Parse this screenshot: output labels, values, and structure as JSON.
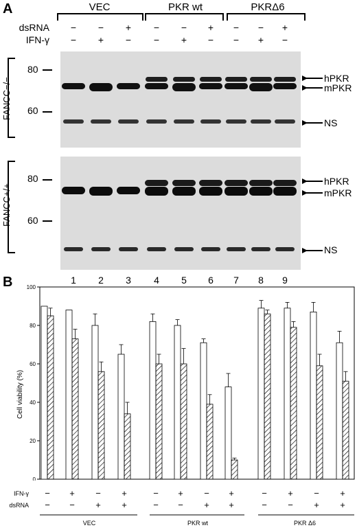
{
  "panel_a": {
    "letter": "A",
    "groups": [
      "VEC",
      "PKR wt",
      "PKRΔ6"
    ],
    "dsrna_label": "dsRNA",
    "ifn_label": "IFN-γ",
    "dsrna_signs": [
      "−",
      "−",
      "+",
      "−",
      "−",
      "+",
      "−",
      "−",
      "+"
    ],
    "ifn_signs": [
      "−",
      "+",
      "−",
      "−",
      "+",
      "−",
      "−",
      "+",
      "−"
    ],
    "blot_top_label": "FANCC−/−",
    "blot_bottom_label": "FANCC+/+",
    "mw_80": "80",
    "mw_60": "60",
    "hpkr": "hPKR",
    "mpkr": "mPKR",
    "ns": "NS",
    "lanes": [
      "1",
      "2",
      "3",
      "4",
      "5",
      "6",
      "7",
      "8",
      "9"
    ]
  },
  "panel_b": {
    "letter": "B",
    "chart_data": {
      "type": "bar",
      "ylabel": "Cell viability (%)",
      "ylim": [
        0,
        100
      ],
      "yticks": [
        "0",
        "20",
        "40",
        "60",
        "80",
        "100"
      ],
      "groups": [
        "VEC",
        "PKR wt",
        "PKR Δ6"
      ],
      "conditions_ifn": [
        "−",
        "+",
        "−",
        "+"
      ],
      "conditions_dsrna": [
        "−",
        "−",
        "+",
        "+"
      ],
      "row_label_ifn": "IFN-γ",
      "row_label_dsrna": "dsRNA",
      "series": [
        {
          "pattern": "open",
          "values": [
            90,
            88,
            80,
            65,
            82,
            80,
            71,
            48,
            89,
            89,
            87,
            71
          ]
        },
        {
          "pattern": "hatched",
          "values": [
            85,
            73,
            56,
            34,
            60,
            60,
            39,
            10,
            86,
            79,
            59,
            51
          ]
        }
      ],
      "errors_open": [
        0,
        0,
        6,
        5,
        4,
        3,
        2,
        7,
        4,
        3,
        5,
        6
      ],
      "errors_hatched": [
        4,
        5,
        5,
        6,
        5,
        8,
        5,
        1,
        2,
        3,
        6,
        5
      ]
    }
  }
}
